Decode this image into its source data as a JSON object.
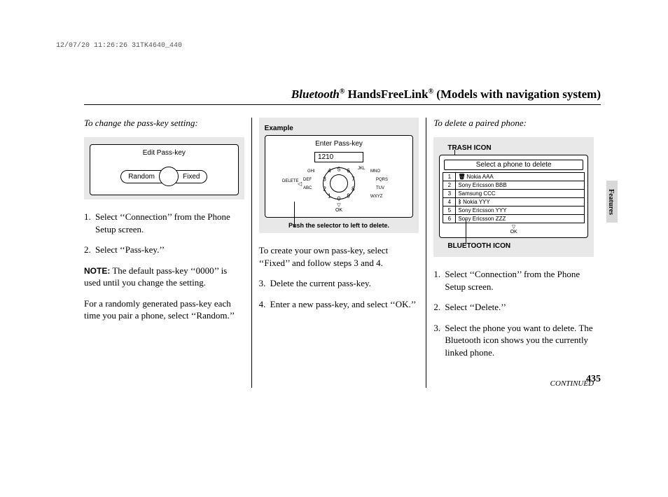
{
  "datestamp": "12/07/20 11:26:26 31TK4640_440",
  "title": {
    "bluetooth": "Bluetooth",
    "hfl": "HandsFreeLink",
    "suffix": "(Models with navigation system)",
    "reg": "®"
  },
  "sidetab": "Features",
  "page_number": "435",
  "continued": "CONTINUED",
  "col1": {
    "heading": "To change the pass-key setting:",
    "fig": {
      "screen_title": "Edit Pass-key",
      "left_btn": "Random",
      "right_btn": "Fixed"
    },
    "steps": [
      "Select ‘‘Connection’’ from the Phone Setup screen.",
      "Select ‘‘Pass-key.’’"
    ],
    "note_label": "NOTE:",
    "note_body": "The default pass-key ‘‘0000’’ is used until you change the setting.",
    "para2": "For a randomly generated pass-key each time you pair a phone, select ‘‘Random.’’"
  },
  "col2": {
    "fig": {
      "example_label": "Example",
      "screen_title": "Enter Pass-key",
      "entered": "1210",
      "dial_numbers": [
        "1",
        "2",
        "3",
        "4",
        "5",
        "6",
        "7",
        "8",
        "9",
        "0"
      ],
      "labels": {
        "jkl": "JKL",
        "mno": "MNO",
        "ghi": "GHI",
        "pqrs": "PQRS",
        "def": "DEF",
        "tuv": "TUV",
        "abc": "ABC",
        "wxyz": "WXYZ",
        "delete": "DELETE"
      },
      "ok": "OK",
      "caption": "Push the selector to left to delete."
    },
    "para1": "To create your own pass-key, select ‘‘Fixed’’ and follow steps 3 and 4.",
    "steps": [
      "Delete the current pass-key.",
      "Enter a new pass-key, and select ‘‘OK.’’"
    ]
  },
  "col3": {
    "heading": "To delete a paired phone:",
    "fig": {
      "trash_label": "TRASH ICON",
      "bt_label": "BLUETOOTH ICON",
      "screen_title": "Select a phone to delete",
      "rows": [
        {
          "n": "1",
          "icon": "trash",
          "name": "Nokia AAA"
        },
        {
          "n": "2",
          "icon": "",
          "name": "Sony Ericsson BBB"
        },
        {
          "n": "3",
          "icon": "",
          "name": "Samsung CCC"
        },
        {
          "n": "4",
          "icon": "bt",
          "name": "Nokia YYY"
        },
        {
          "n": "5",
          "icon": "",
          "name": "Sony Ericsson YYY"
        },
        {
          "n": "6",
          "icon": "",
          "name": "Sony Ericsson ZZZ"
        }
      ],
      "ok": "OK"
    },
    "steps": [
      "Select ‘‘Connection’’ from the Phone Setup screen.",
      "Select ‘‘Delete.’’",
      "Select the phone you want to delete. The Bluetooth icon shows you the currently linked phone."
    ]
  }
}
